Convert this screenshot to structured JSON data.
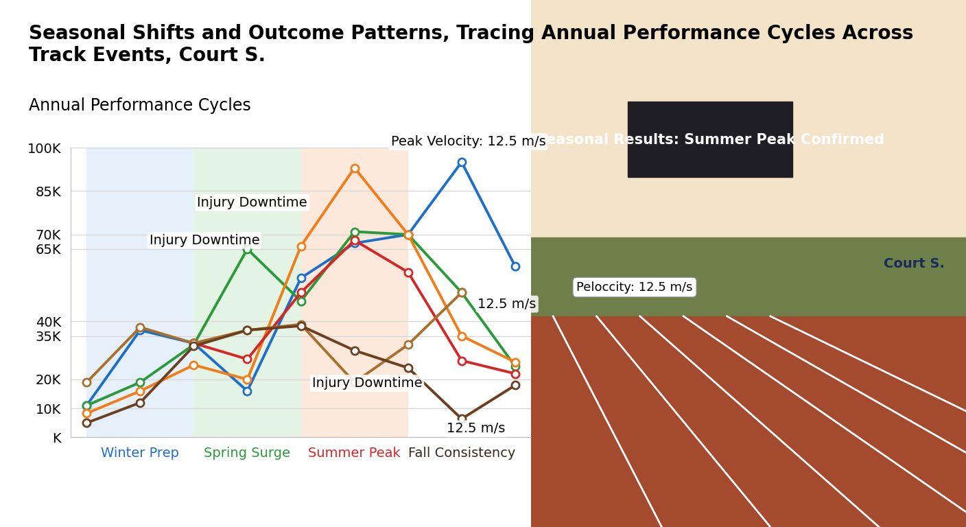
{
  "chart_data": {
    "type": "line",
    "title": "Seasonal Shifts and Outcome Patterns, Tracing Annual Performance Cycles Across Track Events, Court S.",
    "subtitle": "Annual Performance Cycles",
    "categories": [
      null,
      "Winter Prep",
      null,
      "Spring Surge",
      null,
      "Summer Peak",
      null,
      "Fall Consistency",
      null
    ],
    "series": [
      {
        "color": "#1f6fc8",
        "values": [
          11000,
          37000,
          32500,
          16000,
          55000,
          67000,
          70000,
          95000,
          59000
        ]
      },
      {
        "color": "#2a9a3a",
        "values": [
          11000,
          19000,
          32000,
          65000,
          47000,
          71000,
          70000,
          50000,
          24500
        ]
      },
      {
        "color": "#f07c1a",
        "values": [
          8300,
          16000,
          25000,
          20000,
          66000,
          93000,
          70000,
          35000,
          26000
        ]
      },
      {
        "color": "#d62728",
        "values": [
          null,
          null,
          32500,
          27000,
          50000,
          68000,
          57000,
          26500,
          22000
        ]
      },
      {
        "color": "#a8702e",
        "values": [
          19000,
          38000,
          32500,
          37000,
          39000,
          19000,
          32000,
          50000,
          null
        ]
      },
      {
        "color": "#6b3f1f",
        "values": [
          5000,
          12000,
          31500,
          37000,
          38500,
          30000,
          24000,
          6400,
          18000
        ]
      }
    ],
    "ylim": [
      0,
      100000
    ],
    "yticks": [
      {
        "value": 0,
        "label": "K"
      },
      {
        "value": 10000,
        "label": "10K"
      },
      {
        "value": 20000,
        "label": "20K"
      },
      {
        "value": 35000,
        "label": "35K"
      },
      {
        "value": 40000,
        "label": "40K"
      },
      {
        "value": 65000,
        "label": "65K"
      },
      {
        "value": 70000,
        "label": "70K"
      },
      {
        "value": 85000,
        "label": "85K"
      },
      {
        "value": 100000,
        "label": "100K"
      }
    ],
    "marker": "o",
    "grid": true,
    "annotations": [
      "Peak Velocity: 12.5 m/s",
      "Injury Downtime",
      "Injury Downtime",
      "Injury Downtime",
      "12.5 m/s",
      "12.5 m/s"
    ],
    "image_texts": [
      "Seasonal Results: Summer Peak Confirmed",
      "Peloccity: 12.5 m/s",
      "Court S."
    ]
  }
}
